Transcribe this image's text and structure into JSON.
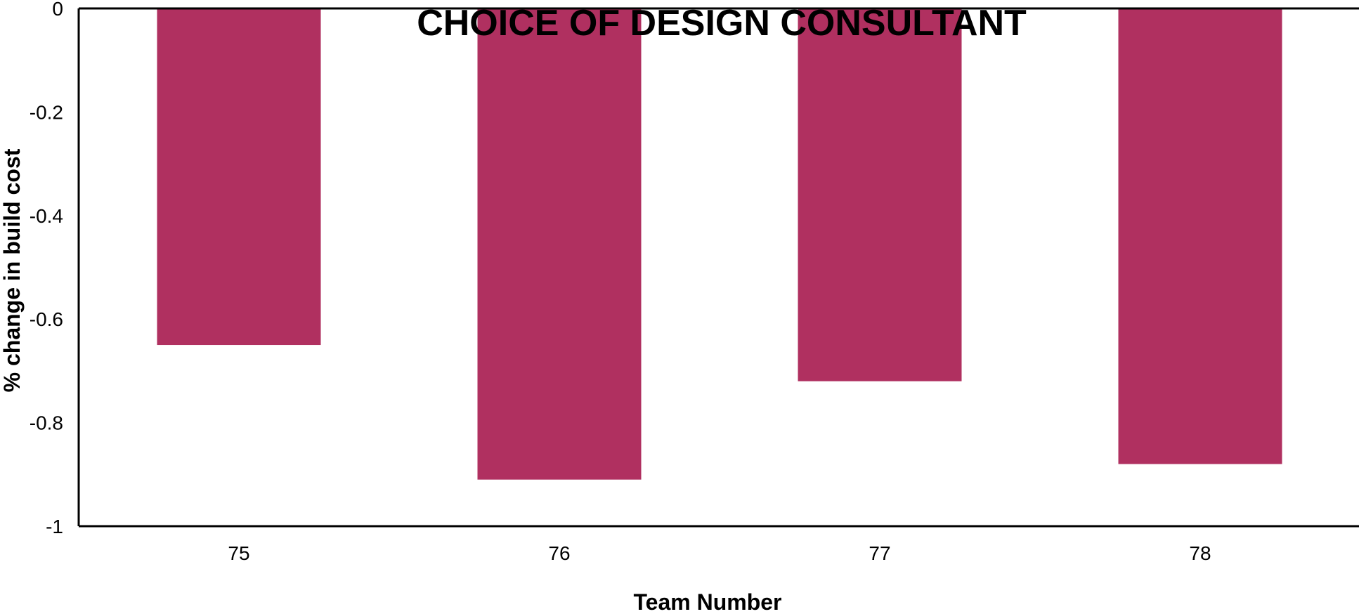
{
  "chart_data": {
    "type": "bar",
    "title": "CHOICE OF DESIGN CONSULTANT",
    "xlabel": "Team Number",
    "ylabel": "% change in build cost",
    "categories": [
      "75",
      "76",
      "77",
      "78"
    ],
    "values": [
      -0.65,
      -0.91,
      -0.72,
      -0.88
    ],
    "ylim": [
      -1,
      0
    ],
    "yticks": [
      0,
      -0.2,
      -0.4,
      -0.6,
      -0.8,
      -1
    ],
    "ytick_labels": [
      "0",
      "-0.2",
      "-0.4",
      "-0.6",
      "-0.8",
      "-1"
    ],
    "bar_color": "#b03060",
    "grid": false,
    "legend": "none"
  }
}
